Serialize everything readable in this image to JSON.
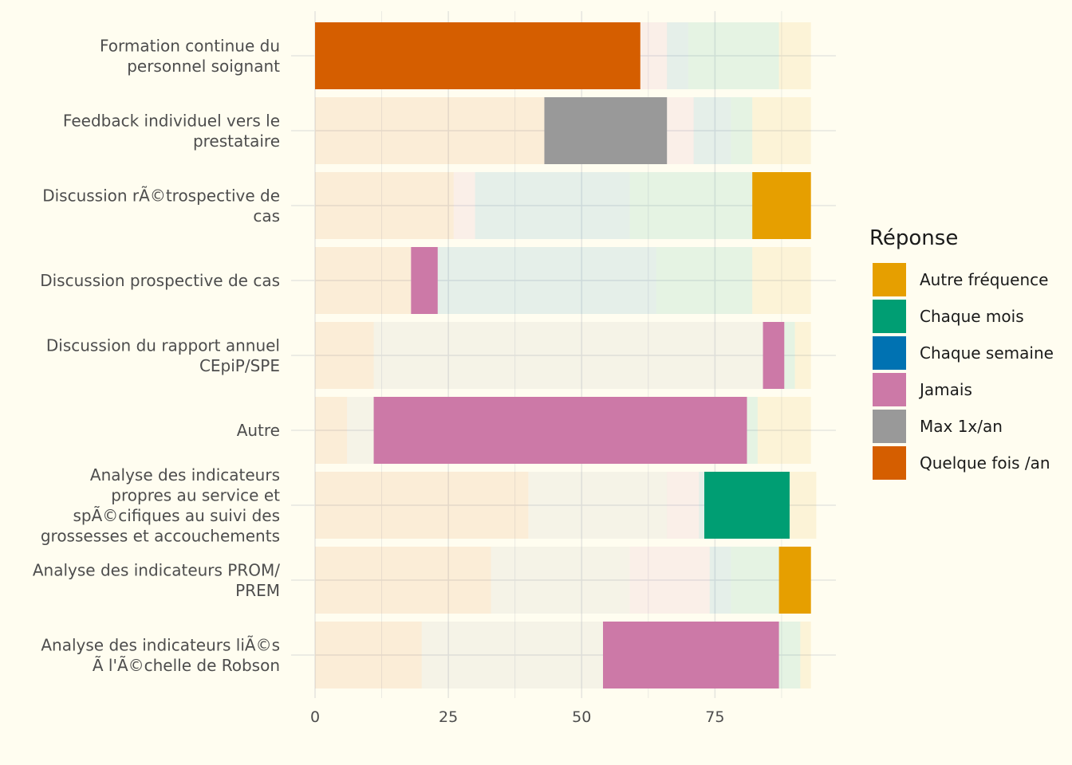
{
  "chart_data": {
    "type": "bar",
    "orientation": "horizontal",
    "stacked": true,
    "categories": [
      [
        "Formation continue du",
        "personnel soignant"
      ],
      [
        "Feedback individuel vers le",
        "prestataire"
      ],
      [
        "Discussion rÃ©trospective de",
        "cas"
      ],
      [
        "Discussion prospective de cas"
      ],
      [
        "Discussion du rapport annuel",
        "CEpiP/SPE"
      ],
      [
        "Autre"
      ],
      [
        "Analyse des indicateurs",
        "propres au service et",
        "spÃ©cifiques au suivi des",
        "grossesses et accouchements"
      ],
      [
        "Analyse des indicateurs PROM/",
        "PREM"
      ],
      [
        "Analyse des indicateurs liÃ©s",
        "Ã  l'Ã©chelle de Robson"
      ]
    ],
    "stack_order": [
      "Quelque fois /an",
      "Max 1x/an",
      "Jamais",
      "Chaque semaine",
      "Chaque mois",
      "Autre fréquence"
    ],
    "series": [
      {
        "name": "Quelque fois /an",
        "color": "#D55E00",
        "values": [
          61,
          43,
          26,
          18,
          11,
          6,
          40,
          33,
          20
        ]
      },
      {
        "name": "Max 1x/an",
        "color": "#999999",
        "values": [
          0,
          23,
          0,
          0,
          73,
          5,
          26,
          26,
          34
        ]
      },
      {
        "name": "Jamais",
        "color": "#CC79A7",
        "values": [
          5,
          5,
          4,
          5,
          4,
          70,
          6,
          15,
          33
        ]
      },
      {
        "name": "Chaque semaine",
        "color": "#0072B2",
        "values": [
          4,
          7,
          29,
          41,
          0,
          0,
          1,
          4,
          0
        ]
      },
      {
        "name": "Chaque mois",
        "color": "#009E73",
        "values": [
          17,
          4,
          23,
          18,
          2,
          2,
          16,
          9,
          4
        ]
      },
      {
        "name": "Autre fréquence",
        "color": "#E69F00",
        "values": [
          6,
          11,
          11,
          11,
          3,
          10,
          5,
          6,
          2
        ]
      }
    ],
    "highlighted_series_per_category": [
      "Quelque fois /an",
      "Max 1x/an",
      "Autre fréquence",
      "Jamais",
      "Jamais",
      "Jamais",
      "Chaque mois",
      "Autre fréquence",
      "Jamais"
    ],
    "xticks": [
      "0",
      "25",
      "50",
      "75"
    ],
    "xlim": [
      0,
      97.5
    ],
    "xlabel": "",
    "ylabel": "",
    "grid": true,
    "legend_position": "right"
  },
  "legend": {
    "title": "Réponse",
    "items": [
      {
        "label": "Autre fréquence",
        "color": "#E69F00"
      },
      {
        "label": "Chaque mois",
        "color": "#009E73"
      },
      {
        "label": "Chaque semaine",
        "color": "#0072B2"
      },
      {
        "label": "Jamais",
        "color": "#CC79A7"
      },
      {
        "label": "Max 1x/an",
        "color": "#999999"
      },
      {
        "label": "Quelque fois /an",
        "color": "#D55E00"
      }
    ]
  },
  "colors": {
    "background": "#fffdf0",
    "grid": "#e6e6e0",
    "text": "#4d4d4d"
  }
}
